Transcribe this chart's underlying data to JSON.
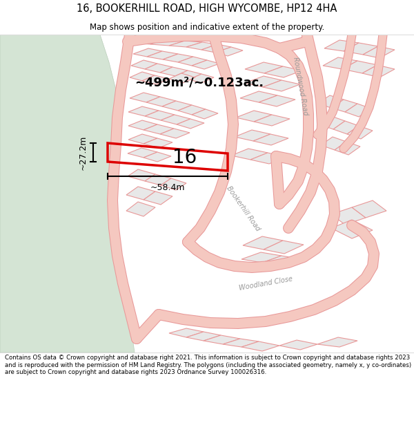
{
  "title": "16, BOOKERHILL ROAD, HIGH WYCOMBE, HP12 4HA",
  "subtitle": "Map shows position and indicative extent of the property.",
  "footer": "Contains OS data © Crown copyright and database right 2021. This information is subject to Crown copyright and database rights 2023 and is reproduced with the permission of HM Land Registry. The polygons (including the associated geometry, namely x, y co-ordinates) are subject to Crown copyright and database rights 2023 Ordnance Survey 100026316.",
  "bg_color": "#f8f8f5",
  "green_color": "#d4e4d4",
  "road_color": "#f5c8c0",
  "road_edge": "#e89898",
  "plot_fill": "#e8e8e8",
  "plot_edge": "#e89898",
  "highlight_color": "#dd0000",
  "area_text": "~499m²/~0.123ac.",
  "width_text": "~58.4m",
  "height_text": "~27.2m",
  "number_text": "16",
  "label_bookerhill": "Bookerhill Road",
  "label_roundwood": "Roundwood Road",
  "label_woodland": "Woodland Close"
}
